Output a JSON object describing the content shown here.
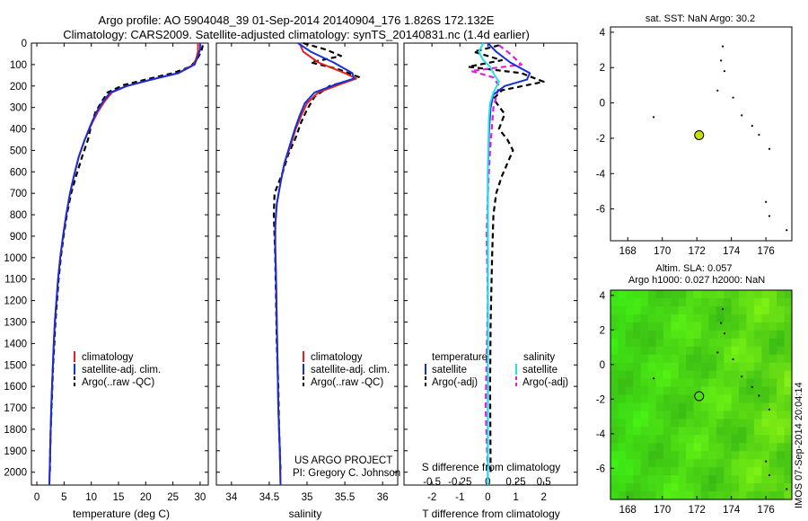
{
  "header": {
    "line1": "Argo profile: AO 5904048_39 01-Sep-2014 20140904_176 1.826S 172.132E",
    "line2": "Climatology: CARS2009. Satellite-adjusted climatology: synTS_20140831.nc (1.4d earlier)"
  },
  "colors": {
    "climatology": "#e8201a",
    "satellite": "#1530d8",
    "argo": "#000000",
    "sal_sat": "#22e0e8",
    "sal_argo": "#e020d8",
    "map_bg": "#50e010",
    "marker": "#c8e000"
  },
  "depth_axis": {
    "ticks": [
      "0",
      "100",
      "200",
      "300",
      "400",
      "500",
      "600",
      "700",
      "800",
      "900",
      "1000",
      "1100",
      "1200",
      "1300",
      "1400",
      "1500",
      "1600",
      "1700",
      "1800",
      "1900",
      "2000"
    ],
    "ylim": [
      0,
      2060
    ]
  },
  "chart_data": [
    {
      "type": "line",
      "id": "temperature",
      "xlabel": "temperature (deg C)",
      "xlim": [
        -1,
        31.5
      ],
      "xticks": [
        "0",
        "5",
        "10",
        "15",
        "20",
        "25",
        "30"
      ],
      "legend": [
        "climatology",
        "satellite-adj. clim.",
        "Argo(..raw -QC)"
      ],
      "series": [
        {
          "name": "climatology",
          "points": [
            [
              29.6,
              0
            ],
            [
              29.6,
              40
            ],
            [
              29.3,
              70
            ],
            [
              28.8,
              100
            ],
            [
              26,
              140
            ],
            [
              21,
              170
            ],
            [
              16.5,
              200
            ],
            [
              13.8,
              230
            ],
            [
              12.5,
              270
            ],
            [
              11.2,
              320
            ],
            [
              10,
              380
            ],
            [
              8.8,
              450
            ],
            [
              7.7,
              530
            ],
            [
              6.8,
              620
            ],
            [
              6.1,
              700
            ],
            [
              5.4,
              800
            ],
            [
              4.8,
              900
            ],
            [
              4.3,
              1000
            ],
            [
              3.9,
              1100
            ],
            [
              3.6,
              1200
            ],
            [
              3.3,
              1300
            ],
            [
              3.1,
              1400
            ],
            [
              2.95,
              1500
            ],
            [
              2.8,
              1600
            ],
            [
              2.65,
              1700
            ],
            [
              2.55,
              1800
            ],
            [
              2.45,
              1900
            ],
            [
              2.35,
              2000
            ],
            [
              2.3,
              2060
            ]
          ]
        },
        {
          "name": "satellite-adj. clim.",
          "points": [
            [
              30,
              0
            ],
            [
              30,
              30
            ],
            [
              29.6,
              60
            ],
            [
              29,
              100
            ],
            [
              26,
              140
            ],
            [
              21,
              170
            ],
            [
              16.5,
              200
            ],
            [
              13.5,
              230
            ],
            [
              12.2,
              270
            ],
            [
              11,
              320
            ],
            [
              9.9,
              380
            ],
            [
              8.8,
              450
            ],
            [
              7.7,
              530
            ],
            [
              6.8,
              620
            ],
            [
              6.1,
              700
            ],
            [
              5.4,
              800
            ],
            [
              4.8,
              900
            ],
            [
              4.3,
              1000
            ],
            [
              3.9,
              1100
            ],
            [
              3.6,
              1200
            ],
            [
              3.3,
              1300
            ],
            [
              3.1,
              1400
            ],
            [
              2.95,
              1500
            ],
            [
              2.8,
              1600
            ],
            [
              2.65,
              1700
            ],
            [
              2.55,
              1800
            ],
            [
              2.45,
              1900
            ],
            [
              2.35,
              2000
            ],
            [
              2.3,
              2060
            ]
          ]
        },
        {
          "name": "Argo(..raw -QC)",
          "points": [
            [
              30.5,
              10
            ],
            [
              30.2,
              40
            ],
            [
              29.3,
              80
            ],
            [
              28.2,
              110
            ],
            [
              25,
              140
            ],
            [
              20,
              170
            ],
            [
              16,
              195
            ],
            [
              13,
              230
            ],
            [
              12,
              270
            ],
            [
              10.8,
              320
            ],
            [
              10,
              380
            ],
            [
              9.4,
              450
            ],
            [
              8.3,
              530
            ],
            [
              7.2,
              620
            ],
            [
              6.3,
              700
            ],
            [
              5.5,
              800
            ],
            [
              4.9,
              900
            ],
            [
              4.4,
              1000
            ],
            [
              4,
              1100
            ],
            [
              3.7,
              1200
            ],
            [
              3.4,
              1300
            ],
            [
              3.2,
              1400
            ],
            [
              3,
              1500
            ],
            [
              2.85,
              1600
            ],
            [
              2.7,
              1700
            ],
            [
              2.55,
              1800
            ],
            [
              2.45,
              1900
            ],
            [
              2.4,
              2000
            ]
          ]
        }
      ]
    },
    {
      "type": "line",
      "id": "salinity",
      "xlabel": "salinity",
      "xlim": [
        33.8,
        36.2
      ],
      "xticks": [
        "34",
        "34.5",
        "35",
        "35.5",
        "36"
      ],
      "legend": [
        "climatology",
        "satellite-adj. clim.",
        "Argo(..raw -QC)"
      ],
      "series": [
        {
          "name": "climatology",
          "points": [
            [
              34.9,
              0
            ],
            [
              34.95,
              40
            ],
            [
              35.15,
              90
            ],
            [
              35.5,
              140
            ],
            [
              35.65,
              165
            ],
            [
              35.45,
              190
            ],
            [
              35.15,
              230
            ],
            [
              35,
              280
            ],
            [
              34.92,
              340
            ],
            [
              34.85,
              400
            ],
            [
              34.78,
              480
            ],
            [
              34.7,
              560
            ],
            [
              34.65,
              650
            ],
            [
              34.6,
              750
            ],
            [
              34.58,
              850
            ],
            [
              34.58,
              950
            ],
            [
              34.59,
              1100
            ],
            [
              34.6,
              1300
            ],
            [
              34.61,
              1500
            ],
            [
              34.62,
              1700
            ],
            [
              34.64,
              1900
            ],
            [
              34.65,
              2060
            ]
          ]
        },
        {
          "name": "satellite-adj. clim.",
          "points": [
            [
              34.88,
              0
            ],
            [
              35.05,
              40
            ],
            [
              35.35,
              90
            ],
            [
              35.6,
              140
            ],
            [
              35.62,
              165
            ],
            [
              35.4,
              190
            ],
            [
              35.1,
              230
            ],
            [
              34.97,
              280
            ],
            [
              34.9,
              340
            ],
            [
              34.84,
              400
            ],
            [
              34.77,
              480
            ],
            [
              34.7,
              560
            ],
            [
              34.65,
              650
            ],
            [
              34.6,
              750
            ],
            [
              34.58,
              850
            ],
            [
              34.58,
              950
            ],
            [
              34.59,
              1100
            ],
            [
              34.6,
              1300
            ],
            [
              34.61,
              1500
            ],
            [
              34.62,
              1700
            ],
            [
              34.64,
              1900
            ],
            [
              34.65,
              2060
            ]
          ]
        },
        {
          "name": "Argo(..raw -QC)",
          "points": [
            [
              34.95,
              0
            ],
            [
              35.25,
              30
            ],
            [
              35.45,
              60
            ],
            [
              35.05,
              90
            ],
            [
              35.4,
              120
            ],
            [
              35.7,
              160
            ],
            [
              35.3,
              200
            ],
            [
              35.1,
              250
            ],
            [
              35,
              310
            ],
            [
              34.92,
              370
            ],
            [
              34.85,
              440
            ],
            [
              34.75,
              520
            ],
            [
              34.68,
              600
            ],
            [
              34.57,
              700
            ],
            [
              34.56,
              800
            ],
            [
              34.57,
              900
            ],
            [
              34.58,
              1000
            ],
            [
              34.59,
              1200
            ],
            [
              34.6,
              1400
            ],
            [
              34.62,
              1600
            ],
            [
              34.63,
              1800
            ],
            [
              34.65,
              2000
            ]
          ]
        }
      ]
    },
    {
      "type": "line",
      "id": "difference",
      "xlabel_top": "S difference from climatology",
      "xlabel": "T difference from climatology",
      "xlim": [
        -3,
        3.2
      ],
      "xticks": [
        "-2",
        "-1",
        "0",
        "1",
        "2"
      ],
      "xticks_top": [
        "-0.5",
        "-0.25",
        "0",
        "0.25",
        "0.5"
      ],
      "legend_titles": [
        "temperature",
        "salinity"
      ],
      "legend": [
        "satellite",
        "Argo(-adj)",
        "satellite",
        "Argo(-adj)"
      ],
      "series": [
        {
          "name": "T satellite",
          "points": [
            [
              0,
              0
            ],
            [
              0.3,
              40
            ],
            [
              0.8,
              90
            ],
            [
              1.5,
              140
            ],
            [
              1.4,
              170
            ],
            [
              0.6,
              200
            ],
            [
              0.2,
              240
            ],
            [
              0.1,
              300
            ],
            [
              0.05,
              400
            ],
            [
              0,
              600
            ],
            [
              0,
              1000
            ],
            [
              0,
              2060
            ]
          ]
        },
        {
          "name": "T Argo(-adj)",
          "points": [
            [
              0.4,
              10
            ],
            [
              -0.5,
              40
            ],
            [
              0.5,
              80
            ],
            [
              -0.7,
              110
            ],
            [
              1.2,
              140
            ],
            [
              2,
              180
            ],
            [
              0.5,
              220
            ],
            [
              0.2,
              260
            ],
            [
              0.6,
              330
            ],
            [
              0.4,
              400
            ],
            [
              0.7,
              450
            ],
            [
              0.9,
              500
            ],
            [
              0.7,
              560
            ],
            [
              0.5,
              620
            ],
            [
              0.3,
              700
            ],
            [
              0.2,
              800
            ],
            [
              0.15,
              1000
            ],
            [
              0.1,
              1300
            ],
            [
              0.08,
              1600
            ],
            [
              0.1,
              2000
            ]
          ]
        },
        {
          "name": "S satellite",
          "points": [
            [
              -0.04,
              0
            ],
            [
              -0.08,
              40
            ],
            [
              -0.04,
              80
            ],
            [
              0.02,
              110
            ],
            [
              0.06,
              150
            ],
            [
              0.1,
              180
            ],
            [
              0.05,
              230
            ],
            [
              0.02,
              280
            ],
            [
              0.01,
              350
            ],
            [
              0,
              600
            ],
            [
              0,
              2060
            ]
          ]
        },
        {
          "name": "S Argo(-adj)",
          "points": [
            [
              0.1,
              10
            ],
            [
              0.2,
              50
            ],
            [
              0.3,
              100
            ],
            [
              -0.15,
              130
            ],
            [
              0.05,
              160
            ],
            [
              0.1,
              200
            ],
            [
              0.05,
              300
            ],
            [
              0.02,
              500
            ],
            [
              0,
              700
            ],
            [
              -0.01,
              900
            ],
            [
              0,
              1200
            ],
            [
              -0.02,
              1700
            ],
            [
              0,
              2000
            ]
          ]
        }
      ]
    },
    {
      "type": "scatter",
      "id": "sst_map",
      "title": "sat. SST: NaN Argo: 30.2",
      "xlim": [
        167,
        177.5
      ],
      "ylim": [
        -7.8,
        4.3
      ],
      "xticks": [
        "168",
        "170",
        "172",
        "174",
        "176"
      ],
      "yticks": [
        "4",
        "2",
        "0",
        "-2",
        "-4",
        "-6"
      ],
      "argo_position": [
        172.132,
        -1.826
      ]
    },
    {
      "type": "heatmap",
      "id": "sla_map",
      "title_line1": "Altim. SLA: 0.057",
      "title_line2": "Argo h1000: 0.027 h2000: NaN",
      "xlim": [
        167,
        177.5
      ],
      "ylim": [
        -7.8,
        4.3
      ],
      "xticks": [
        "168",
        "170",
        "172",
        "174",
        "176"
      ],
      "yticks": [
        "4",
        "2",
        "0",
        "-2",
        "-4",
        "-6"
      ],
      "argo_position": [
        172.132,
        -1.826
      ]
    }
  ],
  "project": {
    "line1": "US ARGO PROJECT",
    "line2": "PI: Gregory C. Johnson"
  },
  "timestamp": "IMOS 07-Sep-2014 20:04:14"
}
